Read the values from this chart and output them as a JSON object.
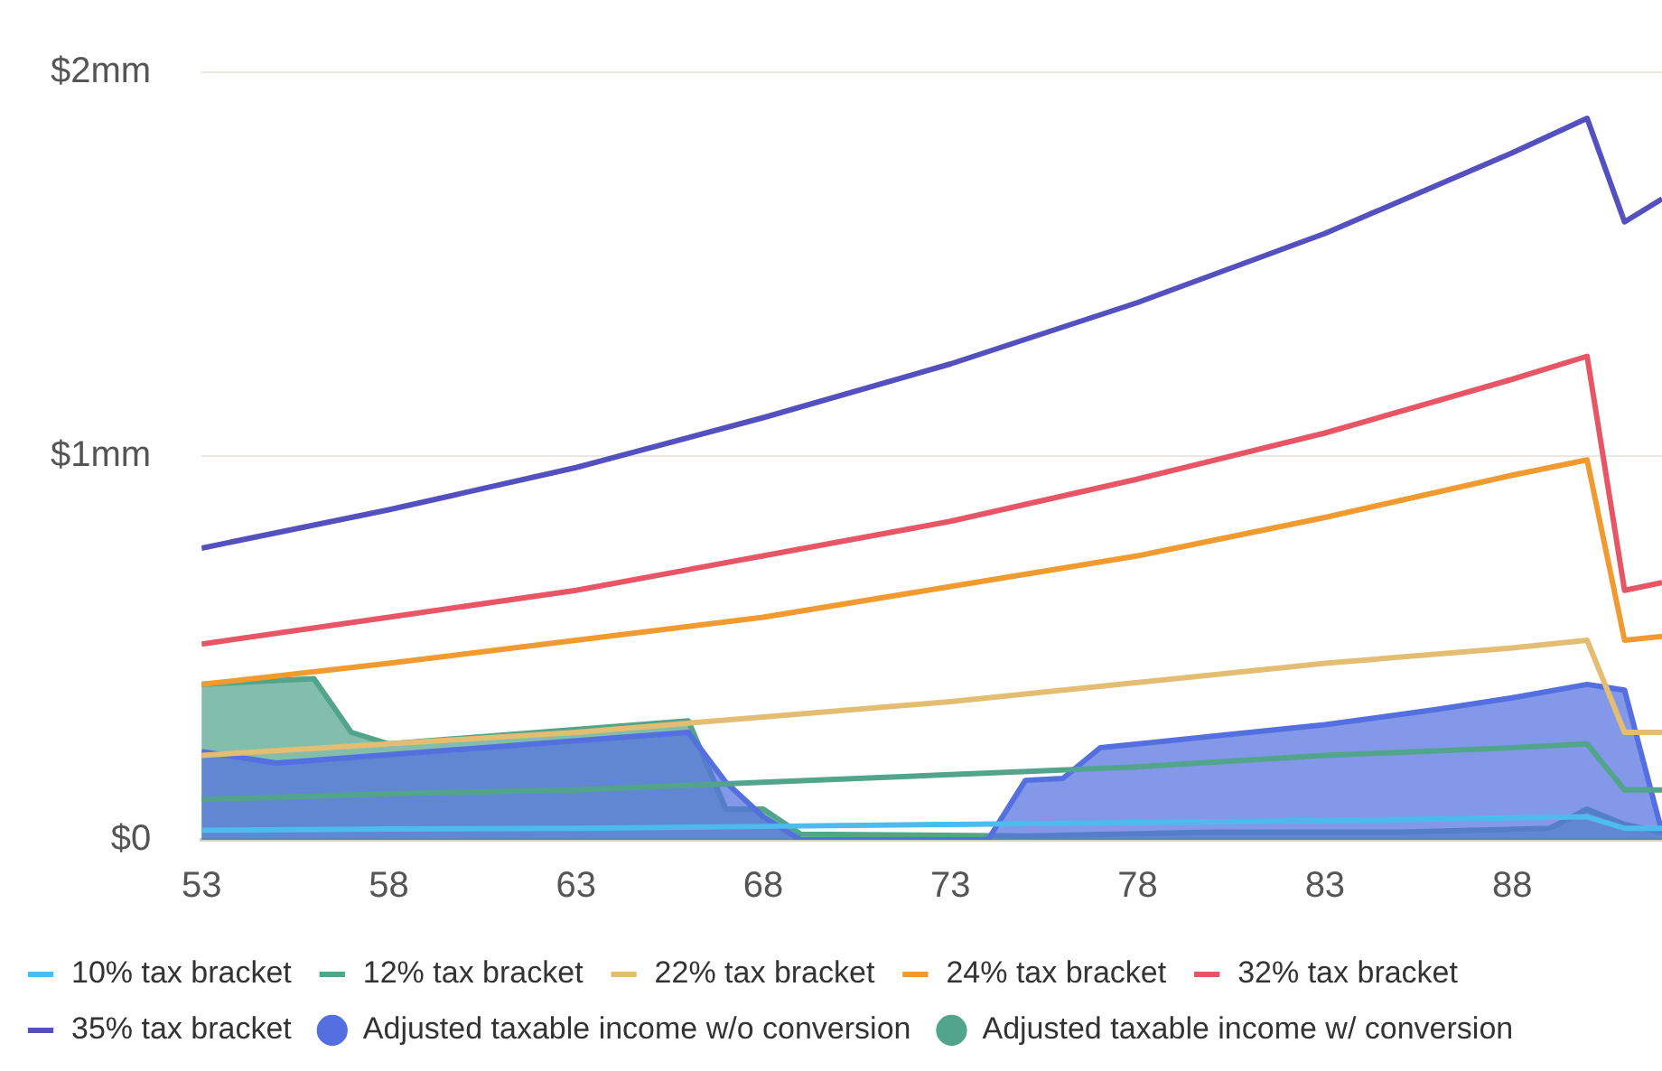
{
  "chart_data": {
    "type": "line",
    "xlim": [
      53,
      92
    ],
    "xticks": [
      53,
      58,
      63,
      68,
      73,
      78,
      83,
      88
    ],
    "ylim": [
      0,
      2
    ],
    "yticks": [
      {
        "value": 0,
        "label": "$0"
      },
      {
        "value": 1,
        "label": "$1mm"
      },
      {
        "value": 2,
        "label": "$2mm"
      }
    ],
    "grid": "y",
    "legend": "bottom",
    "marker": "none",
    "series": [
      {
        "name": "Adjusted taxable income w/ conversion",
        "type": "area",
        "color": "#52a58a",
        "x": [
          53,
          56,
          57,
          58,
          66,
          67,
          68,
          69,
          75,
          80,
          85,
          89,
          90,
          91,
          92
        ],
        "values": [
          0.405,
          0.42,
          0.28,
          0.25,
          0.31,
          0.08,
          0.08,
          0.015,
          0.01,
          0.02,
          0.02,
          0.03,
          0.08,
          0.04,
          0.02
        ]
      },
      {
        "name": "Adjusted taxable income w/o conversion",
        "type": "area",
        "color": "#5470e0",
        "x": [
          53,
          55,
          66,
          67,
          68,
          69,
          74,
          75,
          76,
          77,
          80,
          83,
          86,
          88,
          90,
          91,
          92
        ],
        "values": [
          0.23,
          0.2,
          0.28,
          0.15,
          0.06,
          0,
          0,
          0.155,
          0.16,
          0.24,
          0.27,
          0.3,
          0.34,
          0.37,
          0.405,
          0.39,
          0.02
        ]
      },
      {
        "name": "10% tax bracket",
        "color": "#4dbbed",
        "x": [
          53,
          58,
          63,
          68,
          73,
          78,
          83,
          88,
          90,
          91,
          92
        ],
        "values": [
          0.025,
          0.028,
          0.03,
          0.035,
          0.04,
          0.045,
          0.05,
          0.057,
          0.06,
          0.03,
          0.03
        ]
      },
      {
        "name": "12% tax bracket",
        "color": "#52a58a",
        "x": [
          53,
          58,
          63,
          68,
          73,
          78,
          83,
          88,
          90,
          91,
          92
        ],
        "values": [
          0.105,
          0.12,
          0.13,
          0.15,
          0.17,
          0.19,
          0.22,
          0.24,
          0.25,
          0.13,
          0.13
        ]
      },
      {
        "name": "22% tax bracket",
        "color": "#e3bd72",
        "x": [
          53,
          58,
          63,
          68,
          73,
          78,
          83,
          88,
          90,
          91,
          92
        ],
        "values": [
          0.22,
          0.25,
          0.28,
          0.32,
          0.36,
          0.41,
          0.46,
          0.5,
          0.52,
          0.28,
          0.28
        ]
      },
      {
        "name": "24% tax bracket",
        "color": "#f09a30",
        "x": [
          53,
          58,
          63,
          68,
          73,
          78,
          83,
          88,
          90,
          91,
          92
        ],
        "values": [
          0.405,
          0.46,
          0.52,
          0.58,
          0.66,
          0.74,
          0.84,
          0.95,
          0.99,
          0.52,
          0.53
        ]
      },
      {
        "name": "32% tax bracket",
        "color": "#e85565",
        "x": [
          53,
          58,
          63,
          68,
          73,
          78,
          83,
          88,
          90,
          91,
          92
        ],
        "values": [
          0.51,
          0.58,
          0.65,
          0.74,
          0.83,
          0.94,
          1.06,
          1.2,
          1.26,
          0.65,
          0.67
        ]
      },
      {
        "name": "35% tax bracket",
        "color": "#5550c0",
        "x": [
          53,
          58,
          63,
          68,
          73,
          78,
          83,
          88,
          90,
          91,
          92
        ],
        "values": [
          0.76,
          0.86,
          0.97,
          1.1,
          1.24,
          1.4,
          1.58,
          1.79,
          1.88,
          1.61,
          1.67
        ]
      }
    ]
  }
}
